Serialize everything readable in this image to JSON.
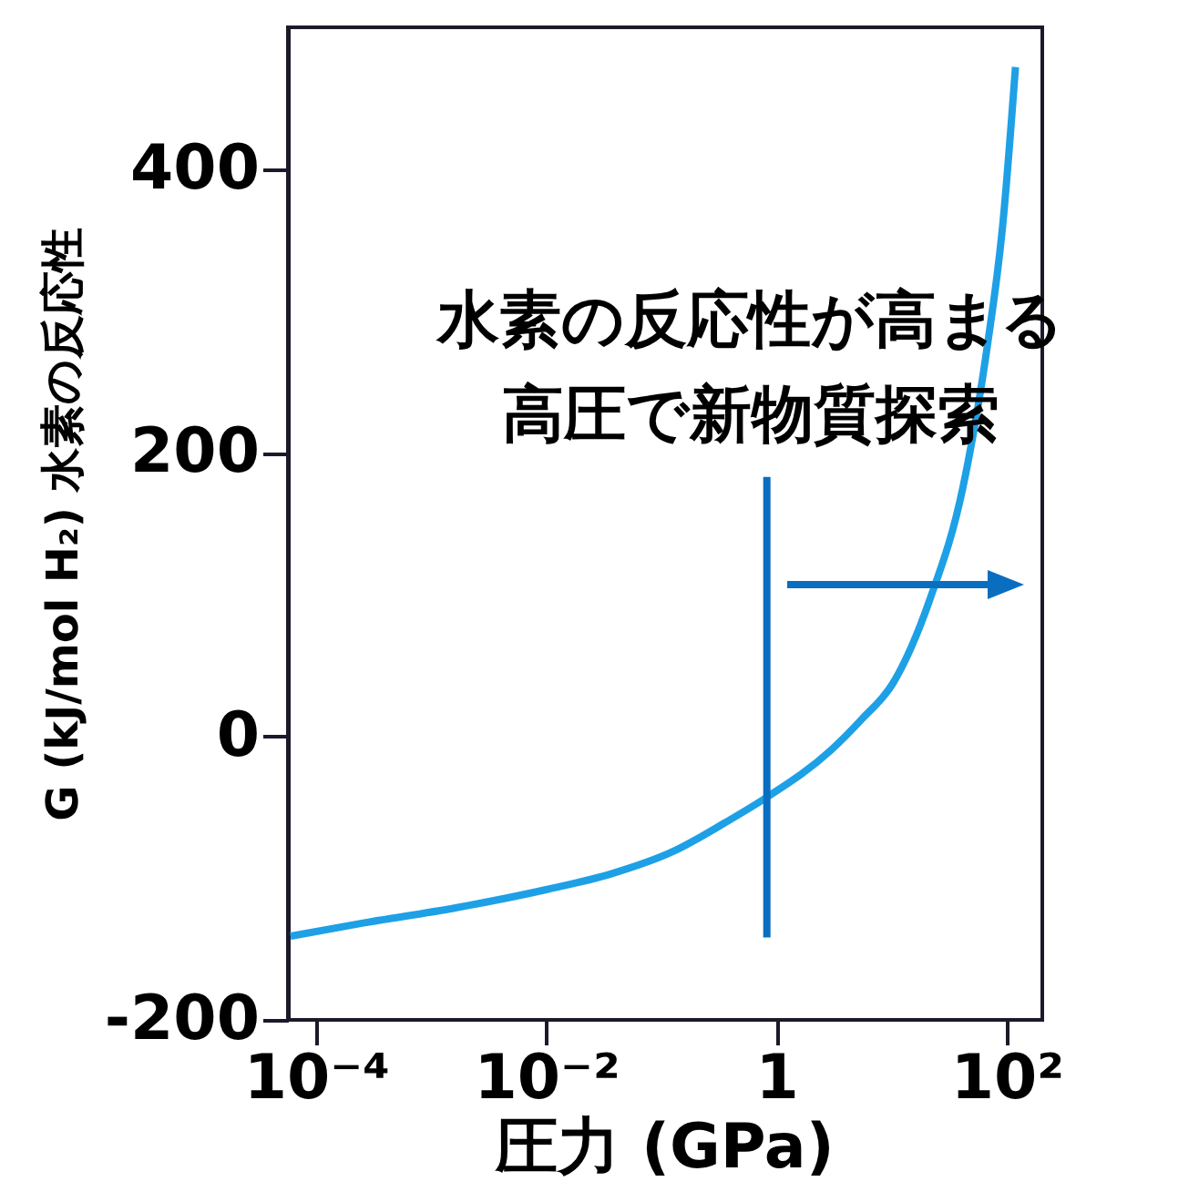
{
  "chart_data": {
    "type": "line",
    "xlabel": "圧力 (GPa)",
    "ylabel": "G (kJ/mol H₂)  水素の反応性",
    "annotations": [
      "水素の反応性が高まる",
      "高圧で新物質探索"
    ],
    "x": [
      5.9e-05,
      0.00024,
      0.0016,
      0.01,
      0.036,
      0.126,
      0.35,
      0.81,
      2.9,
      5.4,
      10.2,
      21,
      41,
      66,
      91,
      117
    ],
    "series": [
      {
        "color": "#1ea0e6",
        "values": [
          -141,
          -132,
          -121,
          -108,
          -97,
          -81,
          -61,
          -43,
          -10,
          12,
          38,
          96,
          176,
          273,
          362,
          472
        ]
      }
    ],
    "xlim": [
      5.6e-05,
      200
    ],
    "xticks": [
      {
        "value": 0.0001,
        "label": "10⁻⁴"
      },
      {
        "value": 0.01,
        "label": "10⁻²"
      },
      1,
      {
        "value": 100,
        "label": "10²"
      }
    ],
    "ylim": [
      -200,
      500
    ],
    "yticks": [
      -200,
      0,
      200,
      400
    ],
    "log": "x",
    "grid": false,
    "marker": "none",
    "ref_lines": [
      {
        "axis": "x",
        "value": 0.81,
        "color": "#0a6ec0"
      }
    ]
  }
}
